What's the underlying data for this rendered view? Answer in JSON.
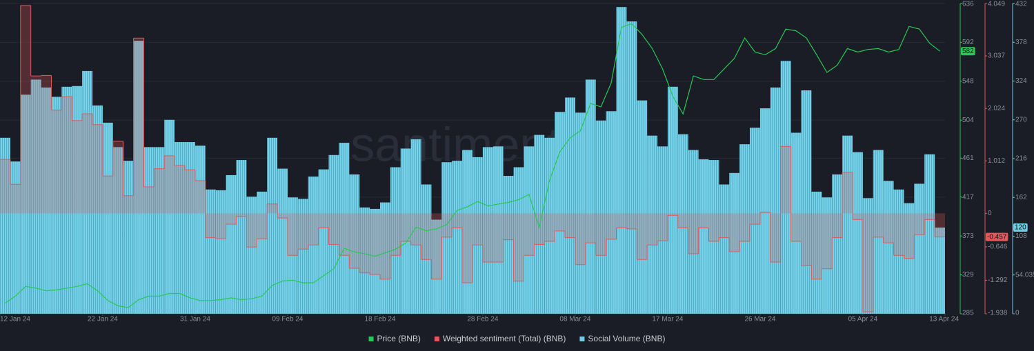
{
  "chart_data": {
    "type": "combo",
    "watermark": "santiment",
    "x": [
      "2024-01-12",
      "2024-01-13",
      "2024-01-14",
      "2024-01-15",
      "2024-01-16",
      "2024-01-17",
      "2024-01-18",
      "2024-01-19",
      "2024-01-20",
      "2024-01-21",
      "2024-01-22",
      "2024-01-23",
      "2024-01-24",
      "2024-01-25",
      "2024-01-26",
      "2024-01-27",
      "2024-01-28",
      "2024-01-29",
      "2024-01-30",
      "2024-01-31",
      "2024-02-01",
      "2024-02-02",
      "2024-02-03",
      "2024-02-04",
      "2024-02-05",
      "2024-02-06",
      "2024-02-07",
      "2024-02-08",
      "2024-02-09",
      "2024-02-10",
      "2024-02-11",
      "2024-02-12",
      "2024-02-13",
      "2024-02-14",
      "2024-02-15",
      "2024-02-16",
      "2024-02-17",
      "2024-02-18",
      "2024-02-19",
      "2024-02-20",
      "2024-02-21",
      "2024-02-22",
      "2024-02-23",
      "2024-02-24",
      "2024-02-25",
      "2024-02-26",
      "2024-02-27",
      "2024-02-28",
      "2024-02-29",
      "2024-03-01",
      "2024-03-02",
      "2024-03-03",
      "2024-03-04",
      "2024-03-05",
      "2024-03-06",
      "2024-03-07",
      "2024-03-08",
      "2024-03-09",
      "2024-03-10",
      "2024-03-11",
      "2024-03-12",
      "2024-03-13",
      "2024-03-14",
      "2024-03-15",
      "2024-03-16",
      "2024-03-17",
      "2024-03-18",
      "2024-03-19",
      "2024-03-20",
      "2024-03-21",
      "2024-03-22",
      "2024-03-23",
      "2024-03-24",
      "2024-03-25",
      "2024-03-26",
      "2024-03-27",
      "2024-03-28",
      "2024-03-29",
      "2024-03-30",
      "2024-03-31",
      "2024-04-01",
      "2024-04-02",
      "2024-04-03",
      "2024-04-04",
      "2024-04-05",
      "2024-04-06",
      "2024-04-07",
      "2024-04-08",
      "2024-04-09",
      "2024-04-10",
      "2024-04-11",
      "2024-04-12"
    ],
    "xlim": [
      "2024-01-12",
      "2024-04-13"
    ],
    "xticks": [
      {
        "value": "2024-01-12",
        "label": "12 Jan 24"
      },
      {
        "value": "2024-01-22",
        "label": "22 Jan 24"
      },
      {
        "value": "2024-01-31",
        "label": "31 Jan 24"
      },
      {
        "value": "2024-02-09",
        "label": "09 Feb 24"
      },
      {
        "value": "2024-02-18",
        "label": "18 Feb 24"
      },
      {
        "value": "2024-02-28",
        "label": "28 Feb 24"
      },
      {
        "value": "2024-03-08",
        "label": "08 Mar 24"
      },
      {
        "value": "2024-03-17",
        "label": "17 Mar 24"
      },
      {
        "value": "2024-03-26",
        "label": "26 Mar 24"
      },
      {
        "value": "2024-04-05",
        "label": "05 Apr 24"
      },
      {
        "value": "2024-04-13",
        "label": "13 Apr 24"
      }
    ],
    "ylim": [
      285,
      636
    ],
    "yticks": [
      285,
      329,
      373,
      417,
      461,
      504,
      548,
      592,
      636
    ],
    "y2lim": [
      -1.938,
      4.049
    ],
    "y2ticks": [
      -1.938,
      -1.292,
      -0.646,
      0,
      1.012,
      2.024,
      3.037,
      4.049
    ],
    "y3lim": [
      0,
      432
    ],
    "y3ticks": [
      0,
      54.035,
      108,
      162,
      216,
      270,
      324,
      378,
      432
    ],
    "grid": true,
    "series": [
      {
        "name": "Price (BNB)",
        "type": "line",
        "color": "#26c953",
        "axis": "y",
        "current_label": "582",
        "values": [
          297,
          305,
          316,
          314,
          311,
          312,
          314,
          316,
          319,
          311,
          300,
          294,
          292,
          301,
          305,
          305,
          308,
          308,
          303,
          300,
          300,
          301,
          303,
          301,
          302,
          305,
          317,
          322,
          323,
          320,
          320,
          328,
          336,
          359,
          355,
          353,
          350,
          354,
          358,
          365,
          383,
          379,
          381,
          386,
          402,
          406,
          412,
          407,
          409,
          411,
          414,
          420,
          383,
          436,
          468,
          484,
          492,
          523,
          519,
          546,
          609,
          613,
          601,
          585,
          562,
          531,
          511,
          554,
          550,
          550,
          562,
          574,
          597,
          581,
          578,
          585,
          607,
          605,
          597,
          578,
          558,
          566,
          585,
          581,
          584,
          585,
          581,
          584,
          610,
          607,
          591,
          582
        ]
      },
      {
        "name": "Weighted sentiment (Total) (BNB)",
        "type": "step",
        "color": "#e2585b",
        "axis": "y2",
        "current_label": "-0.457",
        "values": [
          1.04,
          0.56,
          4.01,
          2.65,
          2.66,
          1.99,
          2.25,
          1.79,
          1.92,
          1.71,
          0.72,
          1.39,
          0.34,
          3.38,
          0.51,
          0.86,
          1.11,
          0.92,
          0.84,
          0.63,
          -0.47,
          -0.49,
          -0.21,
          -0.06,
          -0.65,
          -0.49,
          0.18,
          -0.09,
          -0.81,
          -0.69,
          -0.61,
          -0.28,
          -0.6,
          -0.81,
          -1.06,
          -1.15,
          -1.18,
          -1.27,
          -0.81,
          -0.54,
          -0.61,
          -0.89,
          -1.27,
          -0.46,
          -0.28,
          -1.34,
          -0.61,
          -0.94,
          -0.94,
          -0.51,
          -1.31,
          -0.81,
          -0.6,
          -0.54,
          -0.34,
          -0.47,
          -0.99,
          -0.57,
          -0.81,
          -0.5,
          -0.28,
          -0.3,
          -0.89,
          -0.61,
          -0.53,
          -0.04,
          -0.28,
          -0.78,
          -0.28,
          -0.54,
          -0.47,
          -0.74,
          -0.54,
          -0.21,
          0.02,
          -0.94,
          1.29,
          -0.54,
          -1.01,
          -1.27,
          -1.07,
          -0.47,
          0.79,
          -0.12,
          -1.9,
          -0.46,
          -0.57,
          -0.81,
          -0.87,
          -0.41,
          -0.12,
          -0.457
        ]
      },
      {
        "name": "Social Volume (BNB)",
        "type": "bar",
        "color": "#6fcde4",
        "axis": "y3",
        "current_label": "120",
        "values": [
          245,
          212,
          305,
          326,
          315,
          302,
          316,
          317,
          338,
          290,
          266,
          232,
          213,
          380,
          232,
          232,
          270,
          239,
          239,
          234,
          173,
          172,
          193,
          214,
          163,
          170,
          245,
          202,
          162,
          160,
          191,
          201,
          221,
          238,
          194,
          148,
          146,
          155,
          204,
          230,
          243,
          180,
          131,
          211,
          213,
          228,
          218,
          232,
          233,
          192,
          204,
          233,
          249,
          245,
          281,
          301,
          280,
          326,
          269,
          282,
          427,
          407,
          297,
          248,
          233,
          316,
          250,
          228,
          215,
          214,
          180,
          196,
          236,
          259,
          286,
          315,
          352,
          252,
          311,
          170,
          162,
          194,
          248,
          225,
          161,
          228,
          185,
          173,
          154,
          181,
          222,
          120
        ]
      }
    ]
  }
}
